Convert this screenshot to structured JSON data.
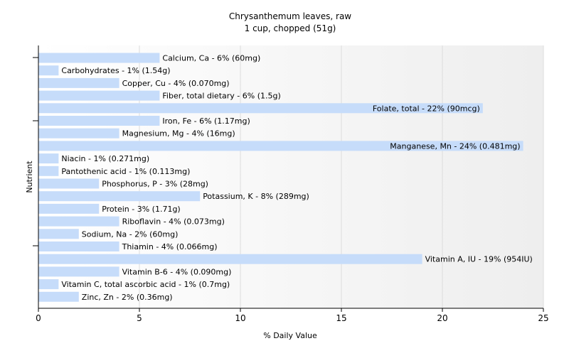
{
  "chart_data": {
    "type": "bar",
    "orientation": "horizontal",
    "title": "Chrysanthemum leaves, raw",
    "subtitle": "1 cup, chopped (51g)",
    "xlabel": "% Daily Value",
    "ylabel": "Nutrient",
    "xlim": [
      0,
      25
    ],
    "xticks": [
      "0",
      "5",
      "10",
      "15",
      "20",
      "25"
    ],
    "grid": true,
    "bar_color": "#c6dcfa",
    "bars": [
      {
        "label": "Calcium, Ca - 6% (60mg)",
        "value": 6
      },
      {
        "label": "Carbohydrates - 1% (1.54g)",
        "value": 1
      },
      {
        "label": "Copper, Cu - 4% (0.070mg)",
        "value": 4
      },
      {
        "label": "Fiber, total dietary - 6% (1.5g)",
        "value": 6
      },
      {
        "label": "Folate, total - 22% (90mcg)",
        "value": 22
      },
      {
        "label": "Iron, Fe - 6% (1.17mg)",
        "value": 6
      },
      {
        "label": "Magnesium, Mg - 4% (16mg)",
        "value": 4
      },
      {
        "label": "Manganese, Mn - 24% (0.481mg)",
        "value": 24
      },
      {
        "label": "Niacin - 1% (0.271mg)",
        "value": 1
      },
      {
        "label": "Pantothenic acid - 1% (0.113mg)",
        "value": 1
      },
      {
        "label": "Phosphorus, P - 3% (28mg)",
        "value": 3
      },
      {
        "label": "Potassium, K - 8% (289mg)",
        "value": 8
      },
      {
        "label": "Protein - 3% (1.71g)",
        "value": 3
      },
      {
        "label": "Riboflavin - 4% (0.073mg)",
        "value": 4
      },
      {
        "label": "Sodium, Na - 2% (60mg)",
        "value": 2
      },
      {
        "label": "Thiamin - 4% (0.066mg)",
        "value": 4
      },
      {
        "label": "Vitamin A, IU - 19% (954IU)",
        "value": 19
      },
      {
        "label": "Vitamin B-6 - 4% (0.090mg)",
        "value": 4
      },
      {
        "label": "Vitamin C, total ascorbic acid - 1% (0.7mg)",
        "value": 1
      },
      {
        "label": "Zinc, Zn - 2% (0.36mg)",
        "value": 2
      }
    ]
  }
}
